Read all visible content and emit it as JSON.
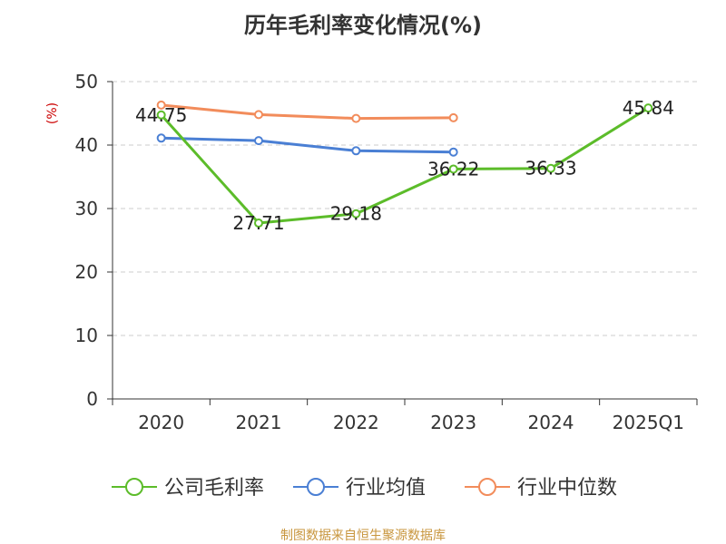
{
  "title": "历年毛利率变化情况(%)",
  "footer": "制图数据来自恒生聚源数据库",
  "chart_data": {
    "type": "line",
    "title": "历年毛利率变化情况(%)",
    "ylabel": "(%)",
    "ylim": [
      0,
      50
    ],
    "yticks": [
      0,
      10,
      20,
      30,
      40,
      50
    ],
    "grid": true,
    "legend_position": "bottom",
    "categories": [
      "2020",
      "2021",
      "2022",
      "2023",
      "2024",
      "2025Q1"
    ],
    "series": [
      {
        "name": "公司毛利率",
        "color": "#5cbc2a",
        "values": [
          44.75,
          27.71,
          29.18,
          36.22,
          36.33,
          45.84
        ],
        "labels": [
          "44.75",
          "27.71",
          "29.18",
          "36.22",
          "36.33",
          "45.84"
        ]
      },
      {
        "name": "行业均值",
        "color": "#4a7fd4",
        "values": [
          41.1,
          40.7,
          39.1,
          38.9,
          null,
          null
        ]
      },
      {
        "name": "行业中位数",
        "color": "#f28c5b",
        "values": [
          46.3,
          44.8,
          44.2,
          44.3,
          null,
          null
        ]
      }
    ],
    "ylabel_color": "#cc0000",
    "footer_color": "#c8963e"
  }
}
